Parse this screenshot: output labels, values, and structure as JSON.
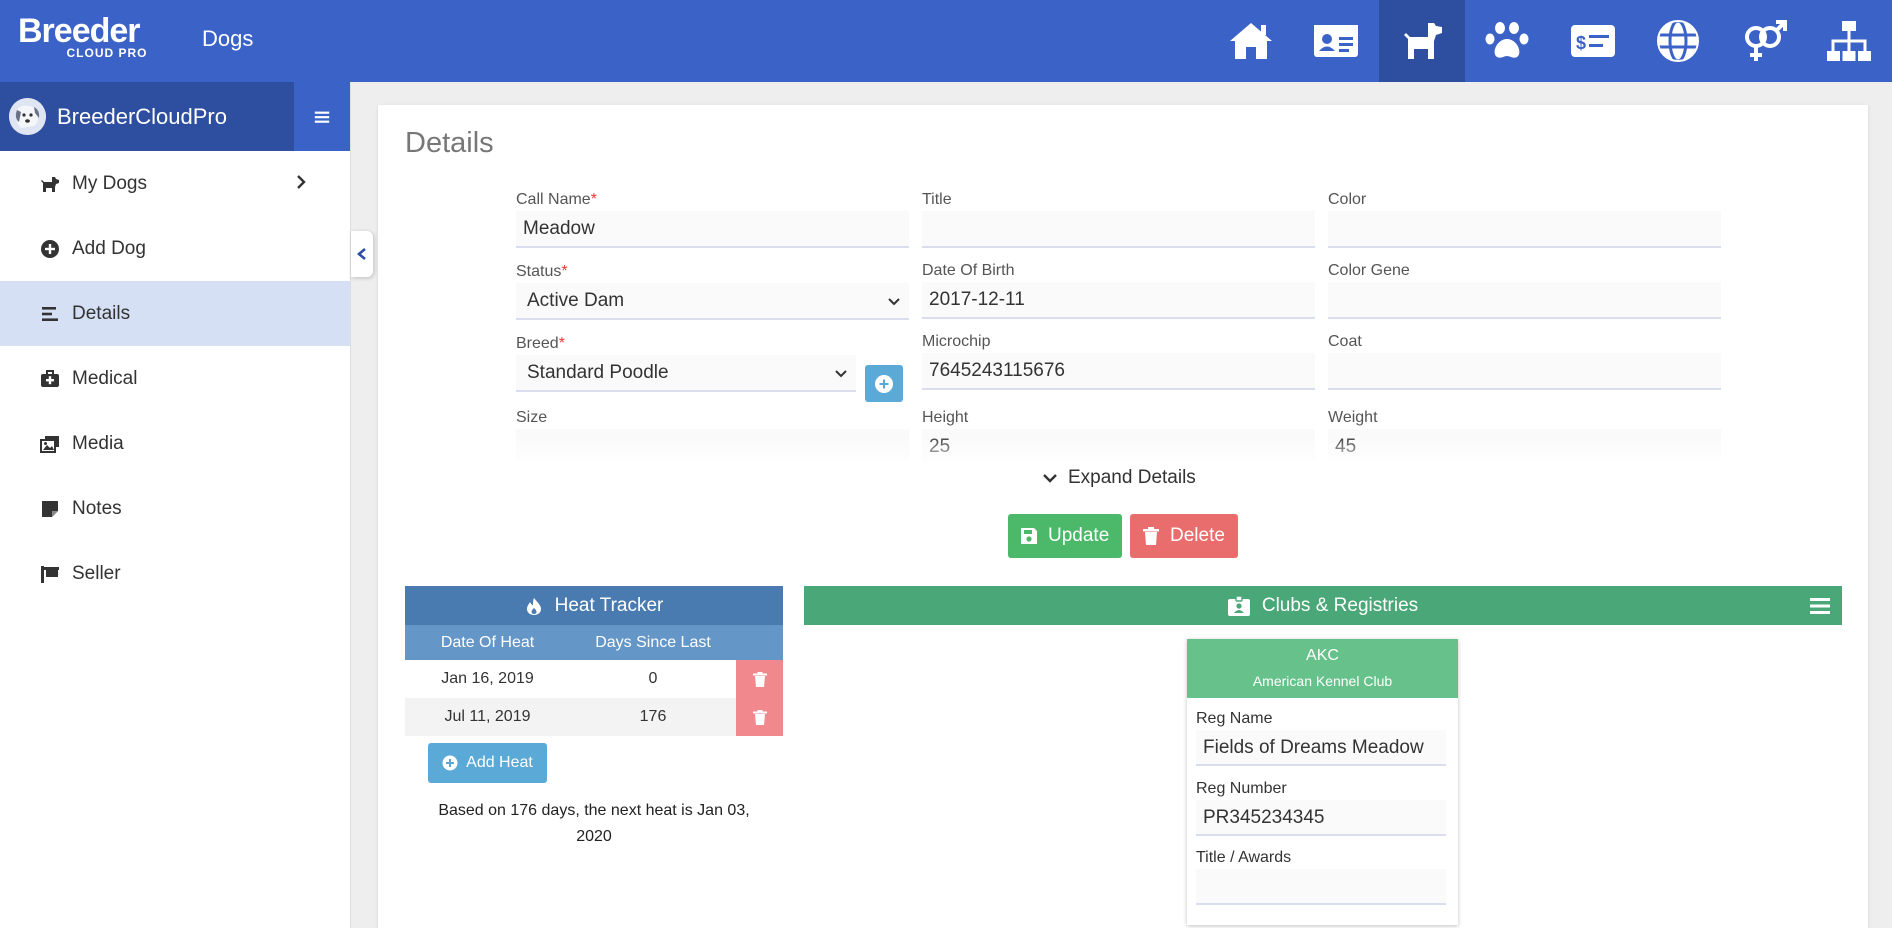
{
  "header": {
    "logo_main": "Breeder",
    "logo_sub": "CLOUD PRO",
    "section": "Dogs",
    "nav_icons": [
      "home-icon",
      "contact-card-icon",
      "dog-icon",
      "paw-icon",
      "invoice-icon",
      "globe-icon",
      "gender-icon",
      "sitemap-icon"
    ],
    "active_nav": "dog-icon"
  },
  "sidebar": {
    "brand": "BreederCloudPro",
    "items": [
      {
        "label": "My Dogs",
        "icon": "dog-icon"
      },
      {
        "label": "Add Dog",
        "icon": "plus-circle-icon"
      },
      {
        "label": "Details",
        "icon": "align-left-icon",
        "active": true
      },
      {
        "label": "Medical",
        "icon": "first-aid-kit-icon"
      },
      {
        "label": "Media",
        "icon": "photos-icon"
      },
      {
        "label": "Notes",
        "icon": "sticky-note-icon"
      },
      {
        "label": "Seller",
        "icon": "sign-icon"
      }
    ]
  },
  "details": {
    "title": "Details",
    "required_marker": "*",
    "call_name": {
      "label": "Call Name",
      "value": "Meadow"
    },
    "title_field": {
      "label": "Title",
      "value": ""
    },
    "color": {
      "label": "Color",
      "value": ""
    },
    "status": {
      "label": "Status",
      "value": "Active Dam"
    },
    "date_of_birth": {
      "label": "Date Of Birth",
      "value": "2017-12-11"
    },
    "color_gene": {
      "label": "Color Gene",
      "value": ""
    },
    "breed": {
      "label": "Breed",
      "value": "Standard Poodle"
    },
    "microchip": {
      "label": "Microchip",
      "value": "7645243115676"
    },
    "coat": {
      "label": "Coat",
      "value": ""
    },
    "size": {
      "label": "Size",
      "value": ""
    },
    "height": {
      "label": "Height",
      "value": "25"
    },
    "weight": {
      "label": "Weight",
      "value": "45"
    },
    "expand_label": "Expand Details",
    "update_label": "Update",
    "delete_label": "Delete"
  },
  "heat_tracker": {
    "title": "Heat Tracker",
    "columns": [
      "Date Of Heat",
      "Days Since Last"
    ],
    "rows": [
      {
        "date": "Jan 16, 2019",
        "days": "0"
      },
      {
        "date": "Jul 11, 2019",
        "days": "176"
      }
    ],
    "add_label": "Add Heat",
    "note": "Based on 176 days, the next heat is Jan 03, 2020"
  },
  "clubs": {
    "title": "Clubs & Registries",
    "registry": {
      "code": "AKC",
      "name": "American Kennel Club",
      "reg_name": {
        "label": "Reg Name",
        "value": "Fields of Dreams Meadow"
      },
      "reg_number": {
        "label": "Reg Number",
        "value": "PR345234345"
      },
      "title_awards": {
        "label": "Title / Awards",
        "value": ""
      }
    }
  },
  "colors": {
    "topbar": "#3b62c7",
    "topbar_active": "#2e4f9f",
    "update_green": "#4cb86a",
    "delete_red": "#e96d6d",
    "heat_blue": "#4a7bb0",
    "clubs_green": "#4aa878"
  }
}
